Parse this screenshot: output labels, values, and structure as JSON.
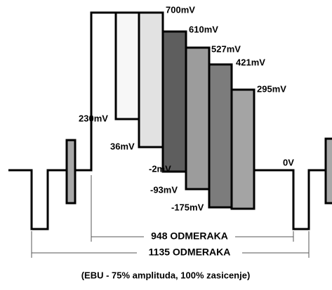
{
  "levels": {
    "white": "700mV",
    "yellow": "610mV",
    "cyan": "527mV",
    "green": "421mV",
    "magenta": "295mV",
    "yellow_low": "230mV",
    "cyan_low": "36mV",
    "green_low": "-2mV",
    "magenta_low": "-93mV",
    "red_low": "-175mV",
    "black": "0V"
  },
  "dimensions": {
    "active": "948 ODMERAKA",
    "total": "1135 ODMERAKA"
  },
  "caption": "(EBU - 75% amplituda, 100% zasicenje)"
}
